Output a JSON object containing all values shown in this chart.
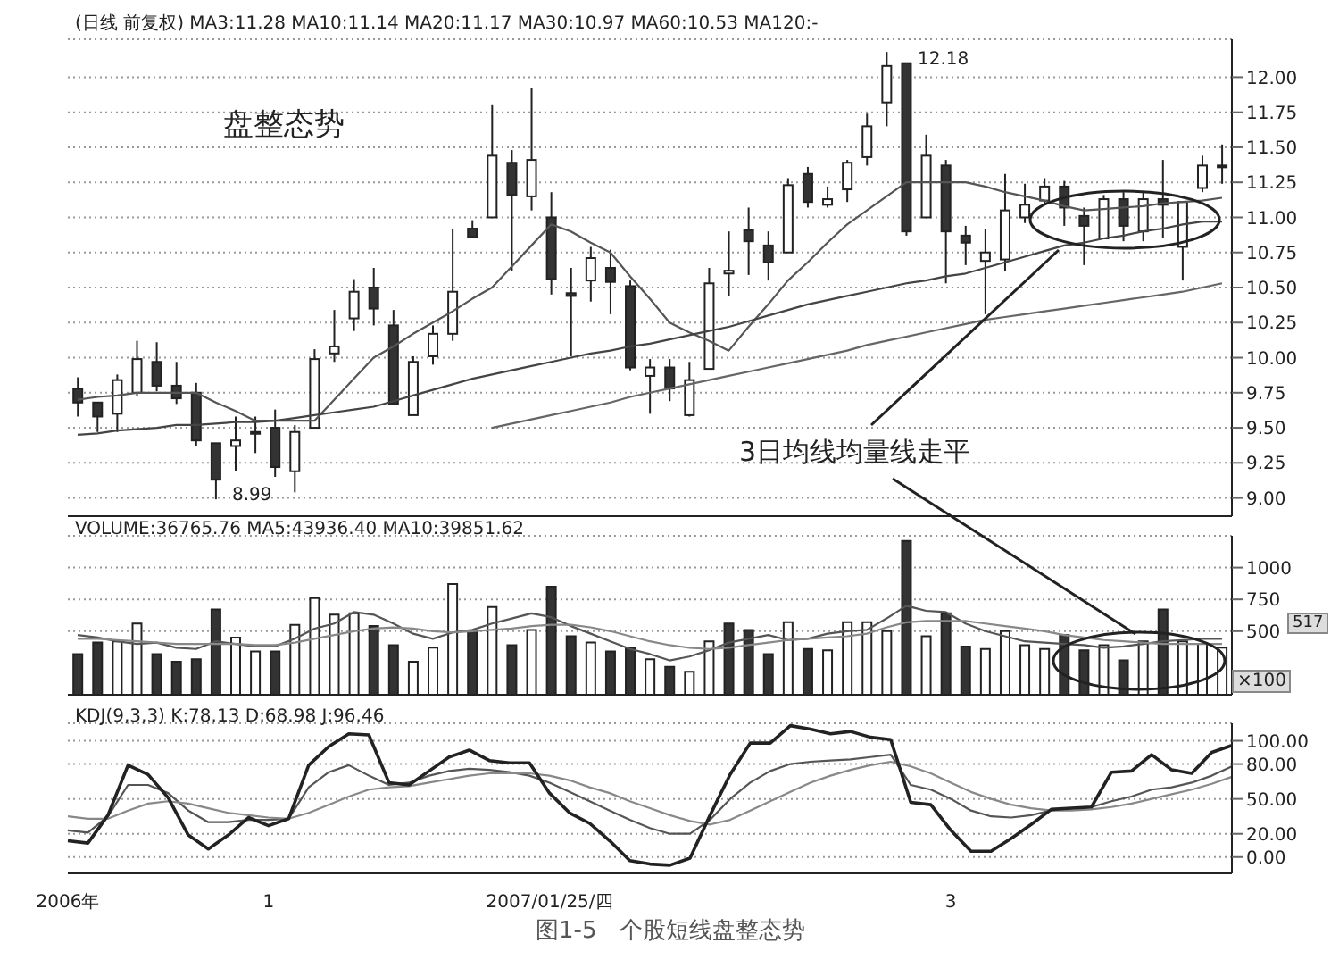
{
  "chart_data": [
    {
      "type": "candlestick",
      "title": "(日线 前复权) MA3:11.28 MA10:11.14 MA20:11.17 MA30:10.97 MA60:10.53 MA120:-",
      "categories": [
        null,
        null,
        null,
        null,
        null,
        null,
        null,
        null,
        null,
        null,
        null,
        null,
        null,
        null,
        null,
        null,
        null,
        null,
        null,
        null,
        null,
        null,
        null,
        null,
        null,
        null,
        null,
        null,
        null,
        null,
        null,
        null,
        null,
        null,
        null,
        null,
        null,
        null,
        null,
        null,
        null,
        null,
        null,
        null,
        null,
        null,
        null,
        null,
        null,
        null,
        null,
        null,
        null,
        null,
        null,
        null,
        null,
        null,
        null
      ],
      "ohlc": [
        [
          9.78,
          9.86,
          9.58,
          9.68
        ],
        [
          9.68,
          9.68,
          9.47,
          9.58
        ],
        [
          9.6,
          9.88,
          9.47,
          9.84
        ],
        [
          9.75,
          10.12,
          9.73,
          9.99
        ],
        [
          9.97,
          10.11,
          9.76,
          9.8
        ],
        [
          9.8,
          9.97,
          9.67,
          9.71
        ],
        [
          9.75,
          9.82,
          9.37,
          9.41
        ],
        [
          9.39,
          9.39,
          8.99,
          9.13
        ],
        [
          9.37,
          9.58,
          9.19,
          9.41
        ],
        [
          9.46,
          9.58,
          9.32,
          9.47
        ],
        [
          9.5,
          9.63,
          9.15,
          9.22
        ],
        [
          9.19,
          9.52,
          9.04,
          9.47
        ],
        [
          9.5,
          10.06,
          9.5,
          9.99
        ],
        [
          10.03,
          10.34,
          9.97,
          10.08
        ],
        [
          10.28,
          10.56,
          10.19,
          10.47
        ],
        [
          10.5,
          10.64,
          10.23,
          10.35
        ],
        [
          10.23,
          10.34,
          9.67,
          9.67
        ],
        [
          9.59,
          10.01,
          9.59,
          9.97
        ],
        [
          10.01,
          10.23,
          9.95,
          10.17
        ],
        [
          10.17,
          10.92,
          10.12,
          10.47
        ],
        [
          10.92,
          10.98,
          10.85,
          10.86
        ],
        [
          11.0,
          11.8,
          11.0,
          11.44
        ],
        [
          11.39,
          11.48,
          10.62,
          11.16
        ],
        [
          11.15,
          11.92,
          11.05,
          11.41
        ],
        [
          11.0,
          11.18,
          10.45,
          10.56
        ],
        [
          10.46,
          10.64,
          10.01,
          10.44
        ],
        [
          10.55,
          10.79,
          10.4,
          10.71
        ],
        [
          10.64,
          10.77,
          10.31,
          10.54
        ],
        [
          10.51,
          10.55,
          9.91,
          9.93
        ],
        [
          9.87,
          9.99,
          9.6,
          9.93
        ],
        [
          9.93,
          9.99,
          9.69,
          9.78
        ],
        [
          9.59,
          9.97,
          9.58,
          9.84
        ],
        [
          9.92,
          10.64,
          9.92,
          10.53
        ],
        [
          10.6,
          10.9,
          10.44,
          10.62
        ],
        [
          10.91,
          11.07,
          10.59,
          10.83
        ],
        [
          10.8,
          10.9,
          10.55,
          10.68
        ],
        [
          10.75,
          11.28,
          10.75,
          11.23
        ],
        [
          11.31,
          11.36,
          11.07,
          11.11
        ],
        [
          11.09,
          11.22,
          11.07,
          11.13
        ],
        [
          11.2,
          11.41,
          11.11,
          11.39
        ],
        [
          11.43,
          11.74,
          11.37,
          11.65
        ],
        [
          11.82,
          12.18,
          11.65,
          12.08
        ],
        [
          12.1,
          12.1,
          10.87,
          10.9
        ],
        [
          11.0,
          11.59,
          11.0,
          11.44
        ],
        [
          11.37,
          11.41,
          10.53,
          10.9
        ],
        [
          10.87,
          10.94,
          10.66,
          10.82
        ],
        [
          10.69,
          10.92,
          10.31,
          10.75
        ],
        [
          10.7,
          11.31,
          10.62,
          11.05
        ],
        [
          11.0,
          11.24,
          10.96,
          11.09
        ],
        [
          11.12,
          11.28,
          11.09,
          11.22
        ],
        [
          11.22,
          11.26,
          10.94,
          11.07
        ],
        [
          11.01,
          11.07,
          10.66,
          10.94
        ],
        [
          10.85,
          11.16,
          10.85,
          11.13
        ],
        [
          11.13,
          11.18,
          10.83,
          10.94
        ],
        [
          10.9,
          11.18,
          10.83,
          11.13
        ],
        [
          11.13,
          11.41,
          10.85,
          11.09
        ],
        [
          10.79,
          11.11,
          10.55,
          11.11
        ],
        [
          11.21,
          11.44,
          11.18,
          11.37
        ],
        [
          11.37,
          11.52,
          11.24,
          11.37
        ]
      ],
      "colors": [
        "#333333",
        "#333333",
        "#ffffff",
        "#ffffff",
        "#333333",
        "#333333",
        "#333333",
        "#333333",
        "#ffffff",
        "#ffffff",
        "#333333",
        "#ffffff",
        "#ffffff",
        "#ffffff",
        "#ffffff",
        "#333333",
        "#333333",
        "#ffffff",
        "#ffffff",
        "#ffffff",
        "#333333",
        "#ffffff",
        "#333333",
        "#ffffff",
        "#333333",
        "#333333",
        "#ffffff",
        "#333333",
        "#333333",
        "#ffffff",
        "#333333",
        "#ffffff",
        "#ffffff",
        "#ffffff",
        "#333333",
        "#333333",
        "#ffffff",
        "#333333",
        "#ffffff",
        "#ffffff",
        "#ffffff",
        "#ffffff",
        "#333333",
        "#ffffff",
        "#333333",
        "#333333",
        "#ffffff",
        "#ffffff",
        "#ffffff",
        "#ffffff",
        "#333333",
        "#333333",
        "#ffffff",
        "#333333",
        "#ffffff",
        "#333333",
        "#ffffff",
        "#ffffff",
        "#ffffff"
      ],
      "series": [
        {
          "type": "line",
          "color": "#555555",
          "values": [
            9.7,
            9.72,
            9.73,
            9.75,
            9.75,
            9.75,
            9.75,
            9.68,
            9.62,
            9.55,
            9.55,
            9.55,
            9.55,
            9.7,
            9.85,
            10.0,
            10.08,
            10.17,
            10.25,
            10.33,
            10.42,
            10.5,
            10.65,
            10.8,
            10.95,
            10.9,
            10.82,
            10.75,
            10.58,
            10.42,
            10.25,
            10.18,
            10.12,
            10.05,
            10.22,
            10.38,
            10.55,
            10.68,
            10.82,
            10.95,
            11.05,
            11.15,
            11.25,
            11.25,
            11.25,
            11.25,
            11.22,
            11.18,
            11.15,
            11.12,
            11.08,
            11.05,
            11.06,
            11.07,
            11.08,
            11.1,
            11.11,
            11.12,
            11.14
          ]
        },
        {
          "type": "line",
          "color": "#444444",
          "values": [
            9.45,
            9.46,
            9.48,
            9.49,
            9.5,
            9.52,
            9.52,
            9.53,
            9.54,
            9.54,
            9.55,
            9.57,
            9.59,
            9.61,
            9.63,
            9.65,
            9.69,
            9.73,
            9.77,
            9.81,
            9.85,
            9.88,
            9.91,
            9.94,
            9.97,
            10.0,
            10.03,
            10.05,
            10.08,
            10.1,
            10.13,
            10.16,
            10.19,
            10.22,
            10.26,
            10.3,
            10.34,
            10.38,
            10.41,
            10.44,
            10.47,
            10.5,
            10.53,
            10.55,
            10.58,
            10.6,
            10.64,
            10.68,
            10.72,
            10.76,
            10.8,
            10.82,
            10.85,
            10.87,
            10.9,
            10.92,
            10.95,
            10.97,
            10.97
          ]
        },
        {
          "type": "line",
          "color": "#666666",
          "values": [
            null,
            null,
            null,
            null,
            null,
            null,
            null,
            null,
            null,
            null,
            null,
            null,
            null,
            null,
            null,
            null,
            null,
            null,
            null,
            null,
            null,
            9.5,
            9.53,
            9.56,
            9.59,
            9.62,
            9.65,
            9.68,
            9.72,
            9.75,
            9.78,
            9.81,
            9.84,
            9.87,
            9.9,
            9.93,
            9.96,
            9.99,
            10.02,
            10.05,
            10.09,
            10.12,
            10.15,
            10.18,
            10.21,
            10.24,
            10.27,
            10.29,
            10.31,
            10.33,
            10.35,
            10.37,
            10.39,
            10.41,
            10.43,
            10.45,
            10.47,
            10.5,
            10.53
          ]
        }
      ],
      "ylim": [
        8.87,
        12.27
      ],
      "yticks": [
        {
          "value": 9,
          "label": "9.00"
        },
        {
          "value": 9.25,
          "label": "9.25"
        },
        {
          "value": 9.5,
          "label": "9.50"
        },
        {
          "value": 9.75,
          "label": "9.75"
        },
        {
          "value": 10,
          "label": "10.00"
        },
        {
          "value": 10.25,
          "label": "10.25"
        },
        {
          "value": 10.5,
          "label": "10.50"
        },
        {
          "value": 10.75,
          "label": "10.75"
        },
        {
          "value": 11,
          "label": "11.00"
        },
        {
          "value": 11.25,
          "label": "11.25"
        },
        {
          "value": 11.5,
          "label": "11.50"
        },
        {
          "value": 11.75,
          "label": "11.75"
        },
        {
          "value": 12,
          "label": "12.00"
        }
      ],
      "grid": "y",
      "tick_labels": "y",
      "annotations": [
        "盘整态势",
        "12.18",
        "8.99",
        "3日均线均量线走平"
      ]
    },
    {
      "type": "bar",
      "title": "VOLUME:36765.76 MA5:43936.40 MA10:39851.62",
      "categories": [
        null,
        null,
        null,
        null,
        null,
        null,
        null,
        null,
        null,
        null,
        null,
        null,
        null,
        null,
        null,
        null,
        null,
        null,
        null,
        null,
        null,
        null,
        null,
        null,
        null,
        null,
        null,
        null,
        null,
        null,
        null,
        null,
        null,
        null,
        null,
        null,
        null,
        null,
        null,
        null,
        null,
        null,
        null,
        null,
        null,
        null,
        null,
        null,
        null,
        null,
        null,
        null,
        null,
        null,
        null,
        null,
        null,
        null,
        null
      ],
      "series": [
        {
          "type": "bar",
          "colors": [
            "#333333",
            "#333333",
            "#ffffff",
            "#ffffff",
            "#333333",
            "#333333",
            "#333333",
            "#333333",
            "#ffffff",
            "#ffffff",
            "#333333",
            "#ffffff",
            "#ffffff",
            "#ffffff",
            "#ffffff",
            "#333333",
            "#333333",
            "#ffffff",
            "#ffffff",
            "#ffffff",
            "#333333",
            "#ffffff",
            "#333333",
            "#ffffff",
            "#333333",
            "#333333",
            "#ffffff",
            "#333333",
            "#333333",
            "#ffffff",
            "#333333",
            "#ffffff",
            "#ffffff",
            "#333333",
            "#333333",
            "#333333",
            "#ffffff",
            "#333333",
            "#ffffff",
            "#ffffff",
            "#ffffff",
            "#ffffff",
            "#333333",
            "#ffffff",
            "#333333",
            "#333333",
            "#ffffff",
            "#ffffff",
            "#ffffff",
            "#ffffff",
            "#333333",
            "#333333",
            "#ffffff",
            "#333333",
            "#ffffff",
            "#333333",
            "#ffffff",
            "#ffffff",
            "#ffffff"
          ],
          "values": [
            320,
            410,
            420,
            560,
            320,
            260,
            280,
            670,
            450,
            340,
            340,
            550,
            760,
            630,
            640,
            540,
            390,
            260,
            370,
            870,
            500,
            690,
            390,
            510,
            850,
            460,
            410,
            340,
            370,
            280,
            220,
            180,
            420,
            560,
            510,
            320,
            570,
            360,
            350,
            570,
            570,
            500,
            1210,
            460,
            640,
            380,
            360,
            500,
            390,
            360,
            470,
            350,
            390,
            270,
            420,
            670,
            420,
            400,
            370
          ]
        },
        {
          "type": "line",
          "color": "#555555",
          "values": [
            470,
            450,
            420,
            400,
            410,
            370,
            360,
            420,
            400,
            380,
            380,
            440,
            520,
            560,
            650,
            630,
            560,
            480,
            440,
            490,
            510,
            560,
            600,
            640,
            610,
            540,
            480,
            420,
            360,
            320,
            270,
            300,
            350,
            410,
            440,
            470,
            430,
            440,
            480,
            500,
            510,
            600,
            700,
            660,
            650,
            560,
            500,
            460,
            420,
            410,
            400,
            390,
            370,
            380,
            400,
            420,
            430,
            440,
            440
          ]
        },
        {
          "type": "line",
          "color": "#888888",
          "values": [
            440,
            440,
            430,
            420,
            410,
            400,
            400,
            400,
            400,
            390,
            390,
            410,
            440,
            470,
            500,
            520,
            530,
            520,
            500,
            490,
            500,
            510,
            520,
            540,
            550,
            550,
            530,
            500,
            460,
            420,
            390,
            370,
            360,
            370,
            390,
            410,
            430,
            440,
            450,
            460,
            480,
            530,
            570,
            580,
            580,
            580,
            560,
            540,
            520,
            500,
            470,
            450,
            430,
            420,
            410,
            400,
            400,
            400,
            400
          ]
        }
      ],
      "ylim": [
        0,
        1250
      ],
      "yticks": [
        500,
        750,
        1000
      ],
      "grid": "y",
      "tick_labels": "y",
      "annotations": [
        "517",
        "×100"
      ]
    },
    {
      "type": "line",
      "title": "KDJ(9,3,3) K:78.13 D:68.98 J:96.46",
      "categories": [
        "2006年",
        null,
        null,
        null,
        null,
        null,
        null,
        null,
        null,
        null,
        "1",
        null,
        null,
        null,
        null,
        null,
        null,
        null,
        null,
        null,
        null,
        null,
        null,
        null,
        "2007/01/25/四",
        null,
        null,
        null,
        null,
        null,
        null,
        null,
        null,
        null,
        null,
        null,
        null,
        null,
        null,
        null,
        null,
        null,
        null,
        null,
        "3",
        null,
        null,
        null,
        null,
        null,
        null,
        null,
        null,
        null,
        null,
        null,
        null,
        null,
        null
      ],
      "series": [
        {
          "color": "#555555",
          "values": [
            23,
            21,
            35,
            62,
            62,
            55,
            40,
            30,
            30,
            32,
            32,
            33,
            60,
            73,
            79,
            70,
            62,
            64,
            70,
            74,
            76,
            75,
            73,
            70,
            64,
            56,
            48,
            40,
            32,
            25,
            20,
            20,
            32,
            50,
            64,
            74,
            80,
            82,
            83,
            84,
            86,
            88,
            62,
            58,
            50,
            40,
            35,
            34,
            36,
            40,
            42,
            43,
            48,
            52,
            58,
            60,
            64,
            70,
            78
          ]
        },
        {
          "color": "#888888",
          "values": [
            35,
            33,
            33,
            40,
            46,
            48,
            46,
            42,
            38,
            36,
            34,
            33,
            38,
            45,
            52,
            58,
            60,
            61,
            64,
            67,
            70,
            72,
            72,
            72,
            70,
            66,
            60,
            55,
            48,
            42,
            36,
            31,
            28,
            32,
            40,
            48,
            56,
            64,
            70,
            75,
            79,
            82,
            78,
            72,
            64,
            56,
            50,
            45,
            42,
            40,
            40,
            41,
            43,
            46,
            50,
            54,
            58,
            63,
            69
          ]
        },
        {
          "color": "#222222",
          "values": [
            14,
            12,
            36,
            79,
            71,
            51,
            19,
            7,
            19,
            34,
            27,
            33,
            79,
            95,
            106,
            105,
            64,
            62,
            74,
            86,
            92,
            83,
            81,
            81,
            55,
            38,
            29,
            14,
            -3,
            -6,
            -7,
            -1,
            36,
            71,
            98,
            98,
            113,
            110,
            106,
            108,
            103,
            101,
            47,
            45,
            23,
            5,
            5,
            16,
            28,
            41,
            42,
            43,
            73,
            74,
            88,
            75,
            72,
            90,
            96
          ]
        }
      ],
      "ylim": [
        -14,
        115
      ],
      "yticks": [
        {
          "value": 0,
          "label": "0.00"
        },
        {
          "value": 20,
          "label": "20.00"
        },
        {
          "value": 50,
          "label": "50.00"
        },
        {
          "value": 80,
          "label": "80.00"
        },
        {
          "value": 100,
          "label": "100.00"
        }
      ],
      "grid": "y",
      "annotations": [
        "图1-5　个股短线盘整态势"
      ]
    }
  ]
}
